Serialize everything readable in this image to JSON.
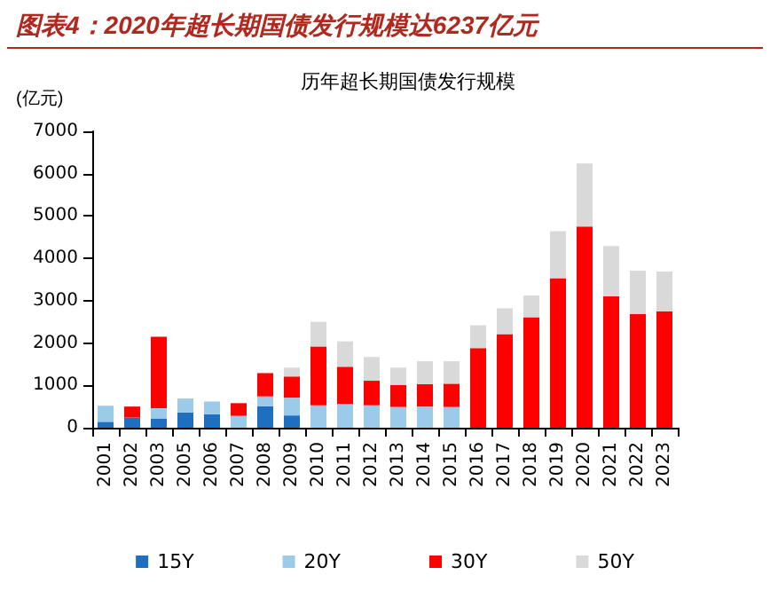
{
  "chart_data": {
    "type": "bar",
    "stacked": true,
    "title": "图表4：2020年超长期国债发行规模达6237亿元",
    "subtitle": "历年超长期国债发行规模",
    "ylabel": "(亿元)",
    "categories": [
      "2001",
      "2002",
      "2003",
      "2005",
      "2006",
      "2007",
      "2008",
      "2009",
      "2010",
      "2011",
      "2012",
      "2013",
      "2014",
      "2015",
      "2016",
      "2017",
      "2018",
      "2019",
      "2020",
      "2021",
      "2022",
      "2023"
    ],
    "series": [
      {
        "name": "15Y",
        "color": "#1f6fc0",
        "values": [
          140,
          240,
          220,
          360,
          320,
          0,
          510,
          290,
          0,
          0,
          0,
          0,
          0,
          0,
          0,
          0,
          0,
          0,
          0,
          0,
          0,
          0
        ]
      },
      {
        "name": "20Y",
        "color": "#9ccbea",
        "values": [
          380,
          0,
          240,
          330,
          300,
          280,
          230,
          420,
          530,
          560,
          530,
          490,
          500,
          490,
          0,
          0,
          0,
          0,
          0,
          0,
          0,
          0
        ]
      },
      {
        "name": "30Y",
        "color": "#ff0000",
        "values": [
          0,
          260,
          1690,
          0,
          0,
          300,
          550,
          500,
          1390,
          880,
          580,
          520,
          530,
          550,
          1880,
          2210,
          2610,
          3530,
          4750,
          3100,
          2690,
          2750
        ]
      },
      {
        "name": "50Y",
        "color": "#d9d9d9",
        "values": [
          0,
          0,
          0,
          0,
          0,
          0,
          0,
          210,
          580,
          600,
          560,
          410,
          540,
          530,
          540,
          610,
          510,
          1110,
          1490,
          1190,
          1020,
          940
        ]
      }
    ],
    "ylim": [
      0,
      7000
    ],
    "yticks": [
      0,
      1000,
      2000,
      3000,
      4000,
      5000,
      6000,
      7000
    ],
    "grid": false,
    "legend": "bottom"
  }
}
